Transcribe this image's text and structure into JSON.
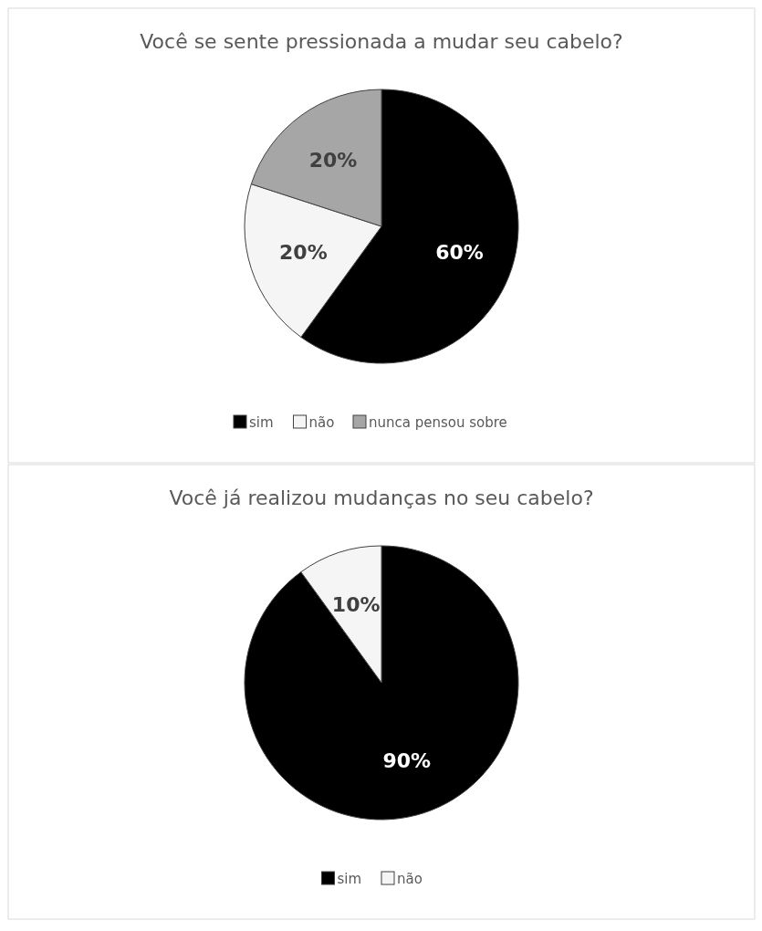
{
  "chart_data": [
    {
      "type": "pie",
      "title": "Você se sente pressionada a mudar seu cabelo?",
      "categories": [
        "sim",
        "não",
        "nunca pensou sobre"
      ],
      "values": [
        60,
        20,
        20
      ],
      "value_labels": [
        "60%",
        "20%",
        "20%"
      ],
      "colors": [
        "#000000",
        "#f5f5f5",
        "#a6a6a6"
      ],
      "legend": "bottom"
    },
    {
      "type": "pie",
      "title": "Você já realizou mudanças no seu cabelo?",
      "categories": [
        "sim",
        "não"
      ],
      "values": [
        90,
        10
      ],
      "value_labels": [
        "90%",
        "10%"
      ],
      "colors": [
        "#000000",
        "#f5f5f5"
      ],
      "legend": "bottom"
    }
  ]
}
